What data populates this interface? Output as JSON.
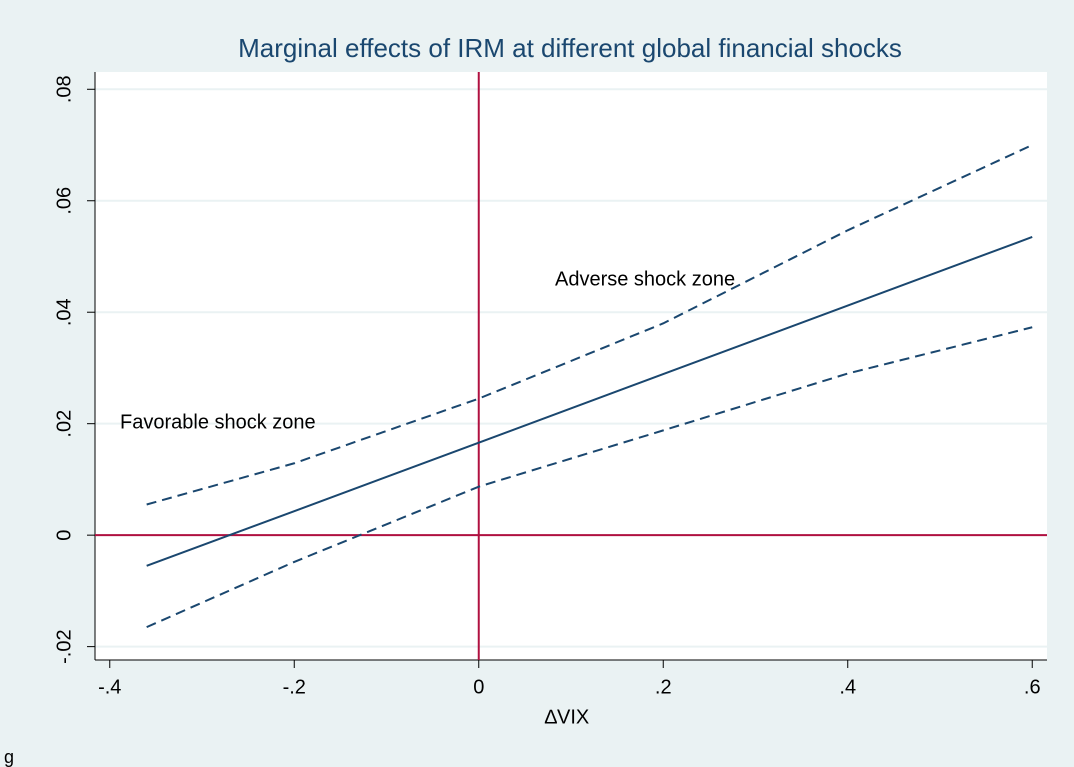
{
  "chart_data": {
    "type": "line",
    "title": "Marginal effects of IRM at different global financial shocks",
    "x_label": "∆VIX",
    "x": [
      -0.36,
      -0.2,
      0,
      0.2,
      0.4,
      0.6
    ],
    "series": [
      {
        "color": "#1a476f",
        "dashed": false,
        "values": [
          -0.0055,
          0.0043,
          0.0166,
          0.0289,
          0.0412,
          0.0535
        ]
      },
      {
        "color": "#1a476f",
        "dashed": true,
        "values": [
          0.0055,
          0.0129,
          0.0245,
          0.038,
          0.0547,
          0.07
        ]
      },
      {
        "color": "#1a476f",
        "dashed": true,
        "values": [
          -0.0165,
          -0.0048,
          0.0087,
          0.0188,
          0.029,
          0.0373
        ]
      }
    ],
    "xlim": [
      -0.416,
      0.616
    ],
    "ylim": [
      -0.0224,
      0.0831
    ],
    "xticks": [
      {
        "value": -0.4,
        "label": "-.4"
      },
      {
        "value": -0.2,
        "label": "-.2"
      },
      0,
      {
        "value": 0.2,
        "label": ".2"
      },
      {
        "value": 0.4,
        "label": ".4"
      },
      {
        "value": 0.6,
        "label": ".6"
      }
    ],
    "yticks": [
      {
        "value": -0.02,
        "label": "-.02"
      },
      0,
      {
        "value": 0.02,
        "label": ".02"
      },
      {
        "value": 0.04,
        "label": ".04"
      },
      {
        "value": 0.06,
        "label": ".06"
      },
      {
        "value": 0.08,
        "label": ".08"
      }
    ],
    "grid": true,
    "reference_lines": {
      "x": 0,
      "y": 0,
      "color": "#b01040"
    },
    "annotations": [
      "Adverse shock zone",
      "Favorable shock zone"
    ],
    "footnote": "g"
  }
}
